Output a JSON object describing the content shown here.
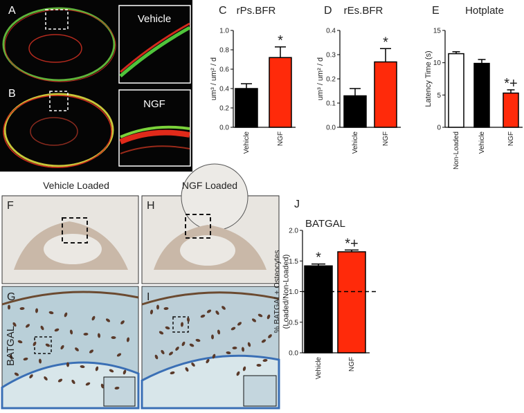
{
  "panels": {
    "A": "A",
    "B": "B",
    "vehicle_inset": "Vehicle",
    "ngf_inset": "NGF",
    "F": "F",
    "G": "G",
    "H": "H",
    "I": "I",
    "vehicle_loaded": "Vehicle Loaded",
    "ngf_loaded": "NGF Loaded",
    "batgal_row": "BATGAL"
  },
  "chart_data": [
    {
      "type": "bar",
      "panel_label": "C",
      "title": "rPs.BFR",
      "y_label": [
        "um³ / um² / d"
      ],
      "categories": [
        "Vehicle",
        "NGF"
      ],
      "values": [
        0.4,
        0.72
      ],
      "errors": [
        0.05,
        0.11
      ],
      "colors": [
        "#000000",
        "#ff2a0a"
      ],
      "annotations": [
        null,
        "*"
      ],
      "ylim": [
        0,
        1.0
      ],
      "yticks": [
        {
          "value": 0,
          "label": "0.0"
        },
        0.2,
        0.4,
        0.6,
        0.8,
        {
          "value": 1,
          "label": "1.0"
        }
      ]
    },
    {
      "type": "bar",
      "panel_label": "D",
      "title": "rEs.BFR",
      "y_label": [
        "um³ / um² / d"
      ],
      "categories": [
        "Vehicle",
        "NGF"
      ],
      "values": [
        0.13,
        0.27
      ],
      "errors": [
        0.03,
        0.055
      ],
      "colors": [
        "#000000",
        "#ff2a0a"
      ],
      "annotations": [
        null,
        "*"
      ],
      "ylim": [
        0,
        0.4
      ],
      "yticks": [
        {
          "value": 0,
          "label": "0.0"
        },
        0.1,
        0.2,
        0.3,
        0.4
      ]
    },
    {
      "type": "bar",
      "panel_label": "E",
      "title": "Hotplate",
      "y_label": [
        "Latency Time (s)"
      ],
      "categories": [
        "Non-Loaded",
        "Vehicle",
        "NGF"
      ],
      "values": [
        11.4,
        9.9,
        5.3
      ],
      "errors": [
        0.3,
        0.6,
        0.5
      ],
      "colors": [
        "#ffffff",
        "#000000",
        "#ff2a0a"
      ],
      "annotations": [
        null,
        null,
        "*+"
      ],
      "ylim": [
        0,
        15
      ],
      "yticks": [
        0,
        5,
        10,
        15
      ]
    },
    {
      "type": "bar",
      "panel_label": "J",
      "title": "BATGAL",
      "y_label": [
        "% BATGAL+ Osteocytes",
        "(Loaded/Non-Loaded)"
      ],
      "categories": [
        "Vehicle",
        "NGF"
      ],
      "values": [
        1.42,
        1.65
      ],
      "errors": [
        0.03,
        0.03
      ],
      "colors": [
        "#000000",
        "#ff2a0a"
      ],
      "annotations": [
        "*",
        "*+"
      ],
      "reference_line": 1.0,
      "ylim": [
        0,
        2.0
      ],
      "yticks": [
        {
          "value": 0,
          "label": "0.0"
        },
        0.5,
        {
          "value": 1,
          "label": "1.0"
        },
        1.5,
        {
          "value": 2,
          "label": "2.0"
        }
      ]
    }
  ]
}
